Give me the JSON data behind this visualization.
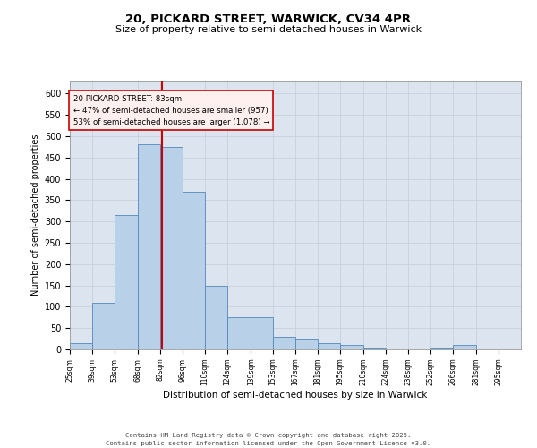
{
  "title_line1": "20, PICKARD STREET, WARWICK, CV34 4PR",
  "title_line2": "Size of property relative to semi-detached houses in Warwick",
  "xlabel": "Distribution of semi-detached houses by size in Warwick",
  "ylabel": "Number of semi-detached properties",
  "property_size": 83,
  "pct_smaller": 47,
  "pct_larger": 53,
  "count_smaller": 957,
  "count_larger": 1078,
  "bin_edges": [
    25,
    39,
    53,
    68,
    82,
    96,
    110,
    124,
    139,
    153,
    167,
    181,
    195,
    210,
    224,
    238,
    252,
    266,
    281,
    295,
    309
  ],
  "bar_heights": [
    15,
    110,
    315,
    480,
    475,
    370,
    150,
    75,
    75,
    30,
    25,
    15,
    10,
    5,
    0,
    0,
    5,
    10,
    0,
    0
  ],
  "bar_color": "#b8d0e8",
  "bar_edge_color": "#5588bb",
  "grid_color": "#c8d0dc",
  "background_color": "#dce4f0",
  "vline_color": "#cc0000",
  "footer_text": "Contains HM Land Registry data © Crown copyright and database right 2025.\nContains public sector information licensed under the Open Government Licence v3.0.",
  "ylim": [
    0,
    630
  ],
  "yticks": [
    0,
    50,
    100,
    150,
    200,
    250,
    300,
    350,
    400,
    450,
    500,
    550,
    600
  ]
}
